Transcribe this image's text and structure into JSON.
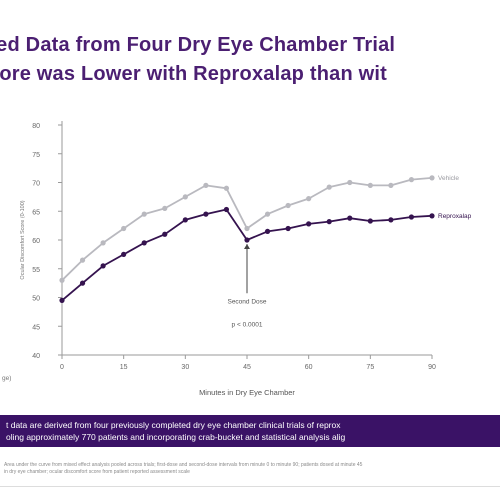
{
  "title": {
    "line1": "oled Data from Four Dry Eye Chamber Trial",
    "line2": "core was Lower with Reproxalap than wit"
  },
  "chart_data": {
    "type": "line",
    "ylabel": "Ocular Discomfort Score (0-100)",
    "xlabel": "Minutes in Dry Eye Chamber",
    "left_fragment": "ge)",
    "x_ticks": [
      "0",
      "15",
      "30",
      "45",
      "60",
      "75",
      "90"
    ],
    "y_ticks": [
      "40",
      "45",
      "50",
      "55",
      "60",
      "65",
      "70",
      "75",
      "80"
    ],
    "xlim": [
      0,
      90
    ],
    "ylim": [
      40,
      80
    ],
    "grid": false,
    "series": [
      {
        "name": "Vehicle",
        "color": "#b9b9bf",
        "x": [
          0,
          5,
          10,
          15,
          20,
          25,
          30,
          35,
          40,
          45,
          50,
          55,
          60,
          65,
          70,
          75,
          80,
          85,
          90
        ],
        "values": [
          53,
          56.5,
          59.5,
          62,
          64.5,
          65.5,
          67.5,
          69.5,
          69,
          62,
          64.5,
          66,
          67.2,
          69.2,
          70,
          69.5,
          69.5,
          70.5,
          70.8
        ]
      },
      {
        "name": "Reproxalap",
        "color": "#35134f",
        "x": [
          0,
          5,
          10,
          15,
          20,
          25,
          30,
          35,
          40,
          45,
          50,
          55,
          60,
          65,
          70,
          75,
          80,
          85,
          90
        ],
        "values": [
          49.5,
          52.5,
          55.5,
          57.5,
          59.5,
          61,
          63.5,
          64.5,
          65.3,
          60,
          61.5,
          62,
          62.8,
          63.2,
          63.8,
          63.3,
          63.5,
          64,
          64.2
        ]
      }
    ],
    "annotations": [
      {
        "text": "Second Dose",
        "x": 45,
        "y": 49
      },
      {
        "text": "p < 0.0001",
        "x": 45,
        "y": 45
      }
    ]
  },
  "banner": {
    "line1": "t data are derived from four previously completed dry eye chamber clinical trials of reprox",
    "line2": "oling approximately 770 patients and incorporating crab-bucket and statistical analysis alig"
  },
  "footnote": {
    "line1": "Area under the curve from mixed effect analysis pooled across trials; first-dose and second-dose intervals from minute 0 to minute 90; patients dosed at minute 45",
    "line2": "in dry eye chamber; ocular discomfort score from patient reported assessment scale"
  }
}
